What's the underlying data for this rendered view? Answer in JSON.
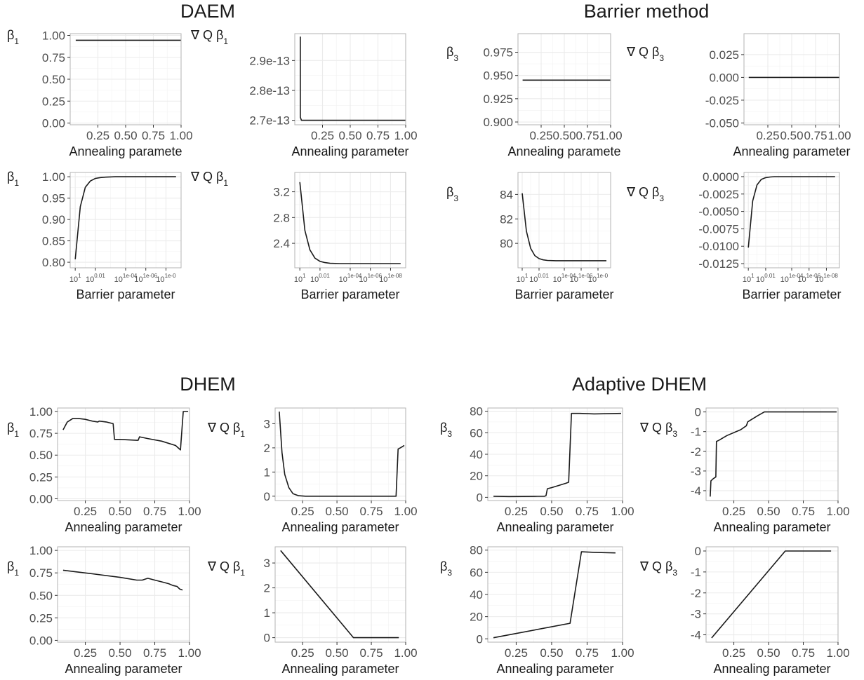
{
  "groups": [
    {
      "title": "DAEM"
    },
    {
      "title": "Barrier method"
    },
    {
      "title": "DHEM"
    },
    {
      "title": "Adaptive DHEM"
    }
  ],
  "chart_data": [
    {
      "type": "line",
      "group": "DAEM",
      "ylabel": "β1",
      "xlabel": "Annealing paramete",
      "xscale": "linear",
      "xlim": [
        0,
        1
      ],
      "ylim": [
        -0.02,
        1.02
      ],
      "xticks": [
        0.25,
        0.5,
        0.75,
        1.0
      ],
      "xtick_labels": [
        "0.25",
        "0.50",
        "0.75",
        "1.00"
      ],
      "yticks": [
        0,
        0.25,
        0.5,
        0.75,
        1.0
      ],
      "ytick_labels": [
        "0.00",
        "0.25",
        "0.50",
        "0.75",
        "1.00"
      ],
      "x": [
        0.05,
        1.0
      ],
      "y": [
        0.945,
        0.945
      ]
    },
    {
      "type": "line",
      "group": "DAEM",
      "ylabel": "∇ Q β1",
      "xlabel": "Annealing parameter",
      "xscale": "linear",
      "xlim": [
        0,
        1
      ],
      "ylim": [
        2.685e-13,
        2.99e-13
      ],
      "xticks": [
        0.25,
        0.5,
        0.75,
        1.0
      ],
      "xtick_labels": [
        "0.25",
        "0.50",
        "0.75",
        "1.00"
      ],
      "yticks": [
        2.7e-13,
        2.8e-13,
        2.9e-13
      ],
      "ytick_labels": [
        "2.7e-13",
        "2.8e-13",
        "2.9e-13"
      ],
      "x": [
        0.05,
        0.05,
        0.06,
        1.0
      ],
      "y": [
        2.98e-13,
        2.71e-13,
        2.7e-13,
        2.7e-13
      ]
    },
    {
      "type": "line",
      "group": "DAEM",
      "ylabel": "β3",
      "xlabel": "Annealing paramete",
      "xscale": "linear",
      "xlim": [
        0,
        1
      ],
      "ylim": [
        0.897,
        0.995
      ],
      "xticks": [
        0.25,
        0.5,
        0.75,
        1.0
      ],
      "xtick_labels": [
        "0.25",
        "0.50",
        "0.75",
        "1.00"
      ],
      "yticks": [
        0.9,
        0.925,
        0.95,
        0.975
      ],
      "ytick_labels": [
        "0.900",
        "0.925",
        "0.950",
        "0.975"
      ],
      "x": [
        0.05,
        1.0
      ],
      "y": [
        0.945,
        0.945
      ]
    },
    {
      "type": "line",
      "group": "DAEM",
      "ylabel": "∇ Q β3",
      "xlabel": "Annealing parameter",
      "xscale": "linear",
      "xlim": [
        0,
        1
      ],
      "ylim": [
        -0.052,
        0.048
      ],
      "xticks": [
        0.25,
        0.5,
        0.75,
        1.0
      ],
      "xtick_labels": [
        "0.25",
        "0.50",
        "0.75",
        "1.00"
      ],
      "yticks": [
        -0.05,
        -0.025,
        0,
        0.025
      ],
      "ytick_labels": [
        "-0.050",
        "-0.025",
        "0.000",
        "0.025"
      ],
      "x": [
        0.05,
        1.0
      ],
      "y": [
        0,
        0
      ]
    },
    {
      "type": "line",
      "group": "Barrier method",
      "ylabel": "β1",
      "xlabel": "Barrier parameter",
      "xscale": "log-reversed",
      "xlim": [
        1.5,
        -9.5
      ],
      "ylim": [
        0.787,
        1.01
      ],
      "xticks": [
        1,
        -1,
        -4,
        -6,
        -8
      ],
      "xtick_labels": [
        "10^1",
        "10^0.01",
        "10^1e-04",
        "10^1e-06",
        "10^1e-0"
      ],
      "yticks": [
        0.8,
        0.85,
        0.9,
        0.95,
        1.0
      ],
      "ytick_labels": [
        "0.80",
        "0.85",
        "0.90",
        "0.95",
        "1.00"
      ],
      "x": [
        1,
        0.5,
        0,
        -0.5,
        -1,
        -1.5,
        -2,
        -3,
        -4,
        -6,
        -9
      ],
      "y": [
        0.807,
        0.93,
        0.975,
        0.99,
        0.996,
        0.998,
        0.999,
        1.0,
        1.0,
        1.0,
        1.0
      ]
    },
    {
      "type": "line",
      "group": "Barrier method",
      "ylabel": "∇ Q β1",
      "xlabel": "Barrier parameter",
      "xscale": "log-reversed",
      "xlim": [
        1.5,
        -9.5
      ],
      "ylim": [
        2.02,
        3.5
      ],
      "xticks": [
        1,
        -1,
        -4,
        -6,
        -8
      ],
      "xtick_labels": [
        "10^1",
        "10^0.01",
        "10^1e-04",
        "10^1e-06",
        "10^1e-08"
      ],
      "yticks": [
        2.4,
        2.8,
        3.2
      ],
      "ytick_labels": [
        "2.4",
        "2.8",
        "3.2"
      ],
      "x": [
        1,
        0.5,
        0,
        -0.5,
        -1,
        -1.5,
        -2,
        -3,
        -4,
        -6,
        -9
      ],
      "y": [
        3.35,
        2.6,
        2.3,
        2.17,
        2.12,
        2.1,
        2.09,
        2.085,
        2.085,
        2.085,
        2.085
      ]
    },
    {
      "type": "line",
      "group": "Barrier method",
      "ylabel": "β3",
      "xlabel": "Barrier parameter",
      "xscale": "log-reversed",
      "xlim": [
        1.5,
        -9.5
      ],
      "ylim": [
        78.0,
        85.8
      ],
      "xticks": [
        1,
        -1,
        -4,
        -6,
        -8
      ],
      "xtick_labels": [
        "10^1",
        "10^0.01",
        "10^1e-04",
        "10^1e-06",
        "10^1e-0"
      ],
      "yticks": [
        80,
        82,
        84
      ],
      "ytick_labels": [
        "80",
        "82",
        "84"
      ],
      "x": [
        1,
        0.5,
        0,
        -0.5,
        -1,
        -1.5,
        -2,
        -3,
        -4,
        -6,
        -9
      ],
      "y": [
        84.1,
        81.0,
        79.6,
        79.0,
        78.75,
        78.65,
        78.6,
        78.58,
        78.58,
        78.58,
        78.58
      ]
    },
    {
      "type": "line",
      "group": "Barrier method",
      "ylabel": "∇ Q β3",
      "xlabel": "Barrier parameter",
      "xscale": "log-reversed",
      "xlim": [
        1.5,
        -9.5
      ],
      "ylim": [
        -0.0131,
        0.0006
      ],
      "xticks": [
        1,
        -1,
        -4,
        -6,
        -8
      ],
      "xtick_labels": [
        "10^1",
        "10^0.01",
        "10^1e-04",
        "10^1e-06",
        "10^1e-08"
      ],
      "yticks": [
        0,
        -0.0025,
        -0.005,
        -0.0075,
        -0.01,
        -0.0125
      ],
      "ytick_labels": [
        "0.0000",
        "-0.0025",
        "-0.0050",
        "-0.0075",
        "-0.0100",
        "-0.0125"
      ],
      "x": [
        1,
        0.5,
        0,
        -0.5,
        -1,
        -1.5,
        -2,
        -3,
        -4,
        -6,
        -9
      ],
      "y": [
        -0.0102,
        -0.0035,
        -0.0012,
        -0.0004,
        -0.00015,
        -5e-05,
        0,
        0,
        0,
        0,
        0
      ]
    },
    {
      "type": "line",
      "group": "DHEM",
      "ylabel": "β1",
      "xlabel": "Annealing parameter",
      "xscale": "linear",
      "xlim": [
        0.05,
        1.0
      ],
      "ylim": [
        -0.02,
        1.04
      ],
      "xticks": [
        0.25,
        0.5,
        0.75,
        1.0
      ],
      "xtick_labels": [
        "0.25",
        "0.50",
        "0.75",
        "1.00"
      ],
      "yticks": [
        0,
        0.25,
        0.5,
        0.75,
        1.0
      ],
      "ytick_labels": [
        "0.00",
        "0.25",
        "0.50",
        "0.75",
        "1.00"
      ],
      "x": [
        0.09,
        0.12,
        0.16,
        0.2,
        0.25,
        0.3,
        0.34,
        0.35,
        0.4,
        0.45,
        0.46,
        0.47,
        0.5,
        0.62,
        0.63,
        0.64,
        0.7,
        0.8,
        0.9,
        0.935,
        0.955,
        0.98,
        0.99
      ],
      "y": [
        0.79,
        0.88,
        0.92,
        0.92,
        0.91,
        0.89,
        0.88,
        0.89,
        0.88,
        0.86,
        0.68,
        0.68,
        0.68,
        0.67,
        0.67,
        0.71,
        0.69,
        0.66,
        0.61,
        0.56,
        1.0,
        1.0,
        1.0
      ]
    },
    {
      "type": "line",
      "group": "DHEM",
      "ylabel": "∇ Q β1",
      "xlabel": "Annealing parameter",
      "xscale": "linear",
      "xlim": [
        0.05,
        1.0
      ],
      "ylim": [
        -0.18,
        3.65
      ],
      "xticks": [
        0.25,
        0.5,
        0.75,
        1.0
      ],
      "xtick_labels": [
        "0.25",
        "0.50",
        "0.75",
        "1.00"
      ],
      "yticks": [
        0,
        1,
        2,
        3
      ],
      "ytick_labels": [
        "0",
        "1",
        "2",
        "3"
      ],
      "x": [
        0.08,
        0.1,
        0.12,
        0.15,
        0.18,
        0.22,
        0.27,
        0.35,
        0.5,
        0.7,
        0.93,
        0.945,
        0.96,
        0.99
      ],
      "y": [
        3.5,
        1.8,
        0.9,
        0.35,
        0.1,
        0.02,
        0,
        0,
        0,
        0,
        0,
        1.95,
        2.0,
        2.1
      ]
    },
    {
      "type": "line",
      "group": "DHEM",
      "ylabel": "β3",
      "xlabel": "Annealing parameter",
      "xscale": "linear",
      "xlim": [
        0.05,
        1.0
      ],
      "ylim": [
        -3,
        83
      ],
      "xticks": [
        0.25,
        0.5,
        0.75,
        1.0
      ],
      "xtick_labels": [
        "0.25",
        "0.50",
        "0.75",
        "1.00"
      ],
      "yticks": [
        0,
        20,
        40,
        60,
        80
      ],
      "ytick_labels": [
        "0",
        "20",
        "40",
        "60",
        "80"
      ],
      "x": [
        0.09,
        0.2,
        0.3,
        0.4,
        0.45,
        0.46,
        0.47,
        0.5,
        0.6,
        0.62,
        0.64,
        0.65,
        0.7,
        0.8,
        0.9,
        0.99
      ],
      "y": [
        1,
        0.7,
        0.8,
        0.9,
        1,
        1.5,
        8,
        9,
        13,
        14,
        78,
        78,
        78,
        77.5,
        77.7,
        78
      ]
    },
    {
      "type": "line",
      "group": "DHEM",
      "ylabel": "∇ Q β3",
      "xlabel": "Annealing parameter",
      "xscale": "linear",
      "xlim": [
        0.05,
        1.0
      ],
      "ylim": [
        -4.5,
        0.2
      ],
      "xticks": [
        0.25,
        0.5,
        0.75,
        1.0
      ],
      "xtick_labels": [
        "0.25",
        "0.50",
        "0.75",
        "1.00"
      ],
      "yticks": [
        0,
        -1,
        -2,
        -3,
        -4
      ],
      "ytick_labels": [
        "0",
        "-1",
        "-2",
        "-3",
        "-4"
      ],
      "x": [
        0.08,
        0.085,
        0.1,
        0.12,
        0.125,
        0.14,
        0.2,
        0.3,
        0.34,
        0.35,
        0.42,
        0.47,
        0.6,
        0.8,
        0.99
      ],
      "y": [
        -4.3,
        -3.5,
        -3.4,
        -3.3,
        -1.5,
        -1.45,
        -1.2,
        -0.9,
        -0.7,
        -0.5,
        -0.2,
        0,
        0,
        0,
        0
      ]
    },
    {
      "type": "line",
      "group": "Adaptive DHEM",
      "ylabel": "β1",
      "xlabel": "Annealing parameter",
      "xscale": "linear",
      "xlim": [
        0.05,
        1.0
      ],
      "ylim": [
        -0.02,
        1.04
      ],
      "xticks": [
        0.25,
        0.5,
        0.75,
        1.0
      ],
      "xtick_labels": [
        "0.25",
        "0.50",
        "0.75",
        "1.00"
      ],
      "yticks": [
        0,
        0.25,
        0.5,
        0.75,
        1.0
      ],
      "ytick_labels": [
        "0.00",
        "0.25",
        "0.50",
        "0.75",
        "1.00"
      ],
      "x": [
        0.09,
        0.3,
        0.5,
        0.62,
        0.66,
        0.7,
        0.75,
        0.8,
        0.85,
        0.88,
        0.91,
        0.93,
        0.95
      ],
      "y": [
        0.78,
        0.74,
        0.7,
        0.67,
        0.67,
        0.69,
        0.67,
        0.65,
        0.63,
        0.61,
        0.6,
        0.57,
        0.56
      ]
    },
    {
      "type": "line",
      "group": "Adaptive DHEM",
      "ylabel": "∇ Q β1",
      "xlabel": "Annealing parameter",
      "xscale": "linear",
      "xlim": [
        0.05,
        1.0
      ],
      "ylim": [
        -0.18,
        3.65
      ],
      "xticks": [
        0.25,
        0.5,
        0.75,
        1.0
      ],
      "xtick_labels": [
        "0.25",
        "0.50",
        "0.75",
        "1.00"
      ],
      "yticks": [
        0,
        1,
        2,
        3
      ],
      "ytick_labels": [
        "0",
        "1",
        "2",
        "3"
      ],
      "x": [
        0.09,
        0.62,
        0.95
      ],
      "y": [
        3.5,
        0,
        0
      ]
    },
    {
      "type": "line",
      "group": "Adaptive DHEM",
      "ylabel": "β3",
      "xlabel": "Annealing parameter",
      "xscale": "linear",
      "xlim": [
        0.05,
        1.0
      ],
      "ylim": [
        -3,
        83
      ],
      "xticks": [
        0.25,
        0.5,
        0.75,
        1.0
      ],
      "xtick_labels": [
        "0.25",
        "0.50",
        "0.75",
        "1.00"
      ],
      "yticks": [
        0,
        20,
        40,
        60,
        80
      ],
      "ytick_labels": [
        "0",
        "20",
        "40",
        "60",
        "80"
      ],
      "x": [
        0.09,
        0.63,
        0.71,
        0.8,
        0.95
      ],
      "y": [
        1,
        14,
        78.5,
        78,
        77.5
      ]
    },
    {
      "type": "line",
      "group": "Adaptive DHEM",
      "ylabel": "∇ Q β3",
      "xlabel": "Annealing parameter",
      "xscale": "linear",
      "xlim": [
        0.05,
        1.0
      ],
      "ylim": [
        -4.35,
        0.2
      ],
      "xticks": [
        0.25,
        0.5,
        0.75,
        1.0
      ],
      "xtick_labels": [
        "0.25",
        "0.50",
        "0.75",
        "1.00"
      ],
      "yticks": [
        0,
        -1,
        -2,
        -3,
        -4
      ],
      "ytick_labels": [
        "0",
        "-1",
        "-2",
        "-3",
        "-4"
      ],
      "x": [
        0.09,
        0.62,
        0.95
      ],
      "y": [
        -4.15,
        0,
        0
      ]
    }
  ]
}
